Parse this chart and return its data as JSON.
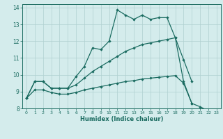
{
  "xlabel": "Humidex (Indice chaleur)",
  "bg_color": "#d4ecec",
  "grid_color": "#b0d0d0",
  "line_color": "#1a6b60",
  "xlim": [
    -0.5,
    23.5
  ],
  "ylim": [
    8,
    14.2
  ],
  "xticks": [
    0,
    1,
    2,
    3,
    4,
    5,
    6,
    7,
    8,
    9,
    10,
    11,
    12,
    13,
    14,
    15,
    16,
    17,
    18,
    19,
    20,
    21,
    22,
    23
  ],
  "yticks": [
    8,
    9,
    10,
    11,
    12,
    13,
    14
  ],
  "line1_x": [
    0,
    1,
    2,
    3,
    4,
    5,
    6,
    7,
    8,
    9,
    10,
    11,
    12,
    13,
    14,
    15,
    16,
    17,
    18,
    19,
    20
  ],
  "line1_y": [
    8.6,
    9.6,
    9.6,
    9.2,
    9.2,
    9.2,
    9.9,
    10.5,
    11.6,
    11.5,
    12.0,
    13.85,
    13.55,
    13.3,
    13.55,
    13.3,
    13.4,
    13.4,
    12.2,
    9.6,
    8.3
  ],
  "line2_x": [
    0,
    1,
    2,
    3,
    4,
    5,
    6,
    7,
    8,
    9,
    10,
    11,
    12,
    13,
    14,
    15,
    16,
    17,
    18,
    19,
    20
  ],
  "line2_y": [
    8.6,
    9.6,
    9.6,
    9.2,
    9.2,
    9.2,
    9.4,
    9.8,
    10.2,
    10.5,
    10.8,
    11.1,
    11.4,
    11.6,
    11.8,
    11.9,
    12.0,
    12.1,
    12.2,
    10.9,
    9.6
  ],
  "line3_x": [
    0,
    1,
    2,
    3,
    4,
    5,
    6,
    7,
    8,
    9,
    10,
    11,
    12,
    13,
    14,
    15,
    16,
    17,
    18,
    19,
    20,
    21,
    22
  ],
  "line3_y": [
    8.6,
    9.1,
    9.1,
    8.95,
    8.85,
    8.85,
    8.95,
    9.1,
    9.2,
    9.3,
    9.4,
    9.5,
    9.6,
    9.65,
    9.75,
    9.8,
    9.85,
    9.9,
    9.95,
    9.5,
    8.3,
    8.1,
    7.85
  ]
}
